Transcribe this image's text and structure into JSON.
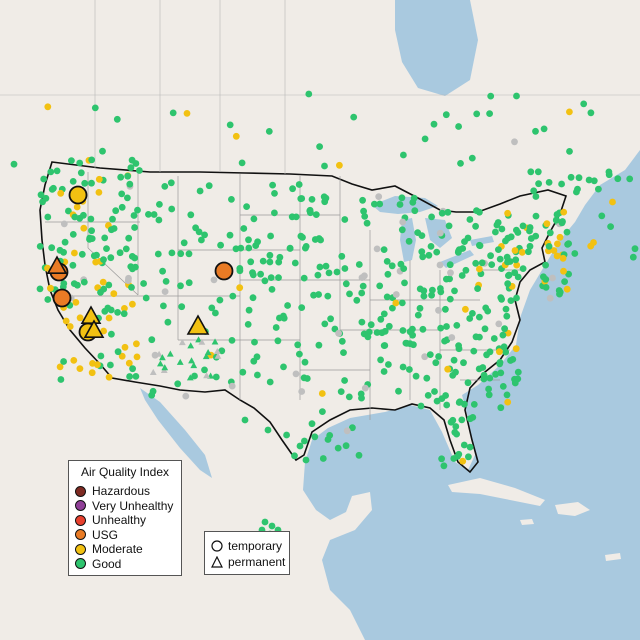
{
  "colors": {
    "water": "#a9c9df",
    "land": "#f0ece7",
    "border": "#111111",
    "state_line": "#9a9a9a",
    "Hazardous": "#7e2a22",
    "Very Unhealthy": "#8f3f97",
    "Unhealthy": "#e8412e",
    "USG": "#e97b25",
    "Moderate": "#f2c112",
    "Good": "#2ec46e",
    "no_data": "#bfbfbf"
  },
  "legend": {
    "title": "Air Quality Index",
    "items": [
      {
        "label": "Hazardous",
        "icon": "circle-icon"
      },
      {
        "label": "Very Unhealthy",
        "icon": "circle-icon"
      },
      {
        "label": "Unhealthy",
        "icon": "circle-icon"
      },
      {
        "label": "USG",
        "icon": "circle-icon"
      },
      {
        "label": "Moderate",
        "icon": "circle-icon"
      },
      {
        "label": "Good",
        "icon": "circle-icon"
      }
    ]
  },
  "monitor_type_legend": {
    "items": [
      {
        "label": "temporary",
        "icon": "circle-outline-icon"
      },
      {
        "label": "permanent",
        "icon": "triangle-outline-icon"
      }
    ]
  }
}
